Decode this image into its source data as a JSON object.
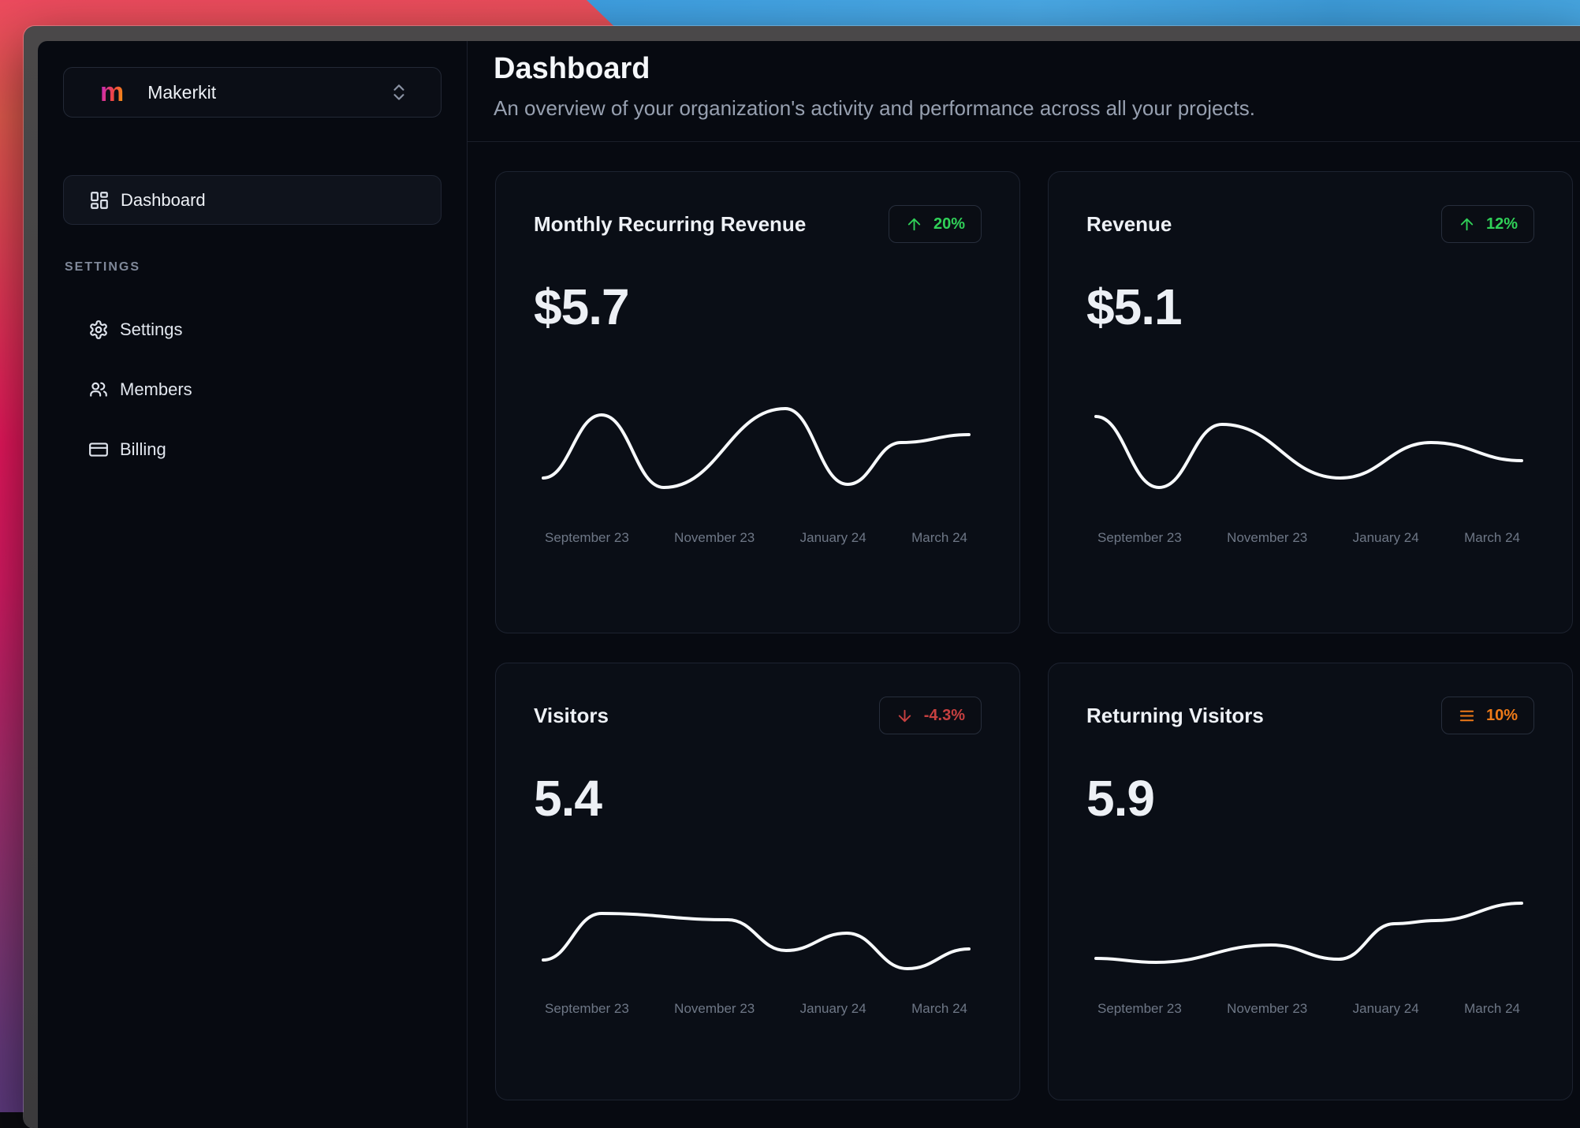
{
  "wallpaper": {
    "left_colors": [
      "#ec4a5e",
      "#e6175c",
      "#a52c6c",
      "#55397f"
    ],
    "blue_color": "#44a3e2"
  },
  "sidebar": {
    "workspace": {
      "logo_letter": "m",
      "name": "Makerkit",
      "selector_icon": "chevrons-up-down-icon"
    },
    "primary_nav": [
      {
        "label": "Dashboard",
        "icon": "dashboard-icon",
        "active": true
      }
    ],
    "section_label": "SETTINGS",
    "settings_nav": [
      {
        "label": "Settings",
        "icon": "settings-icon"
      },
      {
        "label": "Members",
        "icon": "members-icon"
      },
      {
        "label": "Billing",
        "icon": "billing-icon"
      }
    ]
  },
  "header": {
    "title": "Dashboard",
    "subtitle": "An overview of your organization's activity and performance across all your projects."
  },
  "cards": [
    {
      "title": "Monthly Recurring Revenue",
      "badge": {
        "icon": "arrow-up",
        "text": "20%",
        "color": "#30d158"
      },
      "value": "$5.7",
      "categories": [
        "September 23",
        "November 23",
        "January 24",
        "March 24"
      ],
      "spark_points": [
        [
          0,
          100
        ],
        [
          74,
          20
        ],
        [
          153,
          112
        ],
        [
          307,
          12
        ],
        [
          386,
          108
        ],
        [
          454,
          55
        ],
        [
          540,
          45
        ]
      ]
    },
    {
      "title": "Revenue",
      "badge": {
        "icon": "arrow-up",
        "text": "12%",
        "color": "#30d158"
      },
      "value": "$5.1",
      "categories": [
        "September 23",
        "November 23",
        "January 24",
        "March 24"
      ],
      "spark_points": [
        [
          0,
          22
        ],
        [
          80,
          112
        ],
        [
          160,
          32
        ],
        [
          310,
          100
        ],
        [
          425,
          55
        ],
        [
          540,
          78
        ]
      ]
    },
    {
      "title": "Visitors",
      "badge": {
        "icon": "arrow-down",
        "text": "-4.3%",
        "color": "#c74040"
      },
      "value": "5.4",
      "categories": [
        "September 23",
        "November 23",
        "January 24",
        "March 24"
      ],
      "spark_points": [
        [
          0,
          114
        ],
        [
          74,
          55
        ],
        [
          234,
          63
        ],
        [
          308,
          102
        ],
        [
          385,
          80
        ],
        [
          462,
          125
        ],
        [
          540,
          100
        ]
      ]
    },
    {
      "title": "Returning Visitors",
      "badge": {
        "icon": "menu",
        "text": "10%",
        "color": "#ee7a18"
      },
      "value": "5.9",
      "categories": [
        "September 23",
        "November 23",
        "January 24",
        "March 24"
      ],
      "spark_points": [
        [
          0,
          112
        ],
        [
          76,
          117
        ],
        [
          222,
          95
        ],
        [
          308,
          113
        ],
        [
          379,
          68
        ],
        [
          431,
          64
        ],
        [
          540,
          42
        ]
      ]
    }
  ],
  "chart_data": [
    {
      "type": "line",
      "title": "Monthly Recurring Revenue",
      "current_value": "$5.7",
      "trend": "+20%",
      "categories": [
        "September 23",
        "November 23",
        "January 24",
        "March 24"
      ],
      "relative_values": [
        0.33,
        0.87,
        0.25,
        0.92,
        0.28,
        0.63,
        0.7
      ],
      "xlabel": "",
      "ylabel": "",
      "grid": false,
      "legend": false
    },
    {
      "type": "line",
      "title": "Revenue",
      "current_value": "$5.1",
      "trend": "+12%",
      "categories": [
        "September 23",
        "November 23",
        "January 24",
        "March 24"
      ],
      "relative_values": [
        0.85,
        0.25,
        0.79,
        0.33,
        0.63,
        0.48
      ],
      "xlabel": "",
      "ylabel": "",
      "grid": false,
      "legend": false
    },
    {
      "type": "line",
      "title": "Visitors",
      "current_value": "5.4",
      "trend": "-4.3%",
      "categories": [
        "September 23",
        "November 23",
        "January 24",
        "March 24"
      ],
      "relative_values": [
        0.24,
        0.63,
        0.58,
        0.32,
        0.47,
        0.17,
        0.33
      ],
      "xlabel": "",
      "ylabel": "",
      "grid": false,
      "legend": false
    },
    {
      "type": "line",
      "title": "Returning Visitors",
      "current_value": "5.9",
      "trend": "10%",
      "categories": [
        "September 23",
        "November 23",
        "January 24",
        "March 24"
      ],
      "relative_values": [
        0.25,
        0.22,
        0.37,
        0.25,
        0.55,
        0.57,
        0.72
      ],
      "xlabel": "",
      "ylabel": "",
      "grid": false,
      "legend": false
    }
  ]
}
